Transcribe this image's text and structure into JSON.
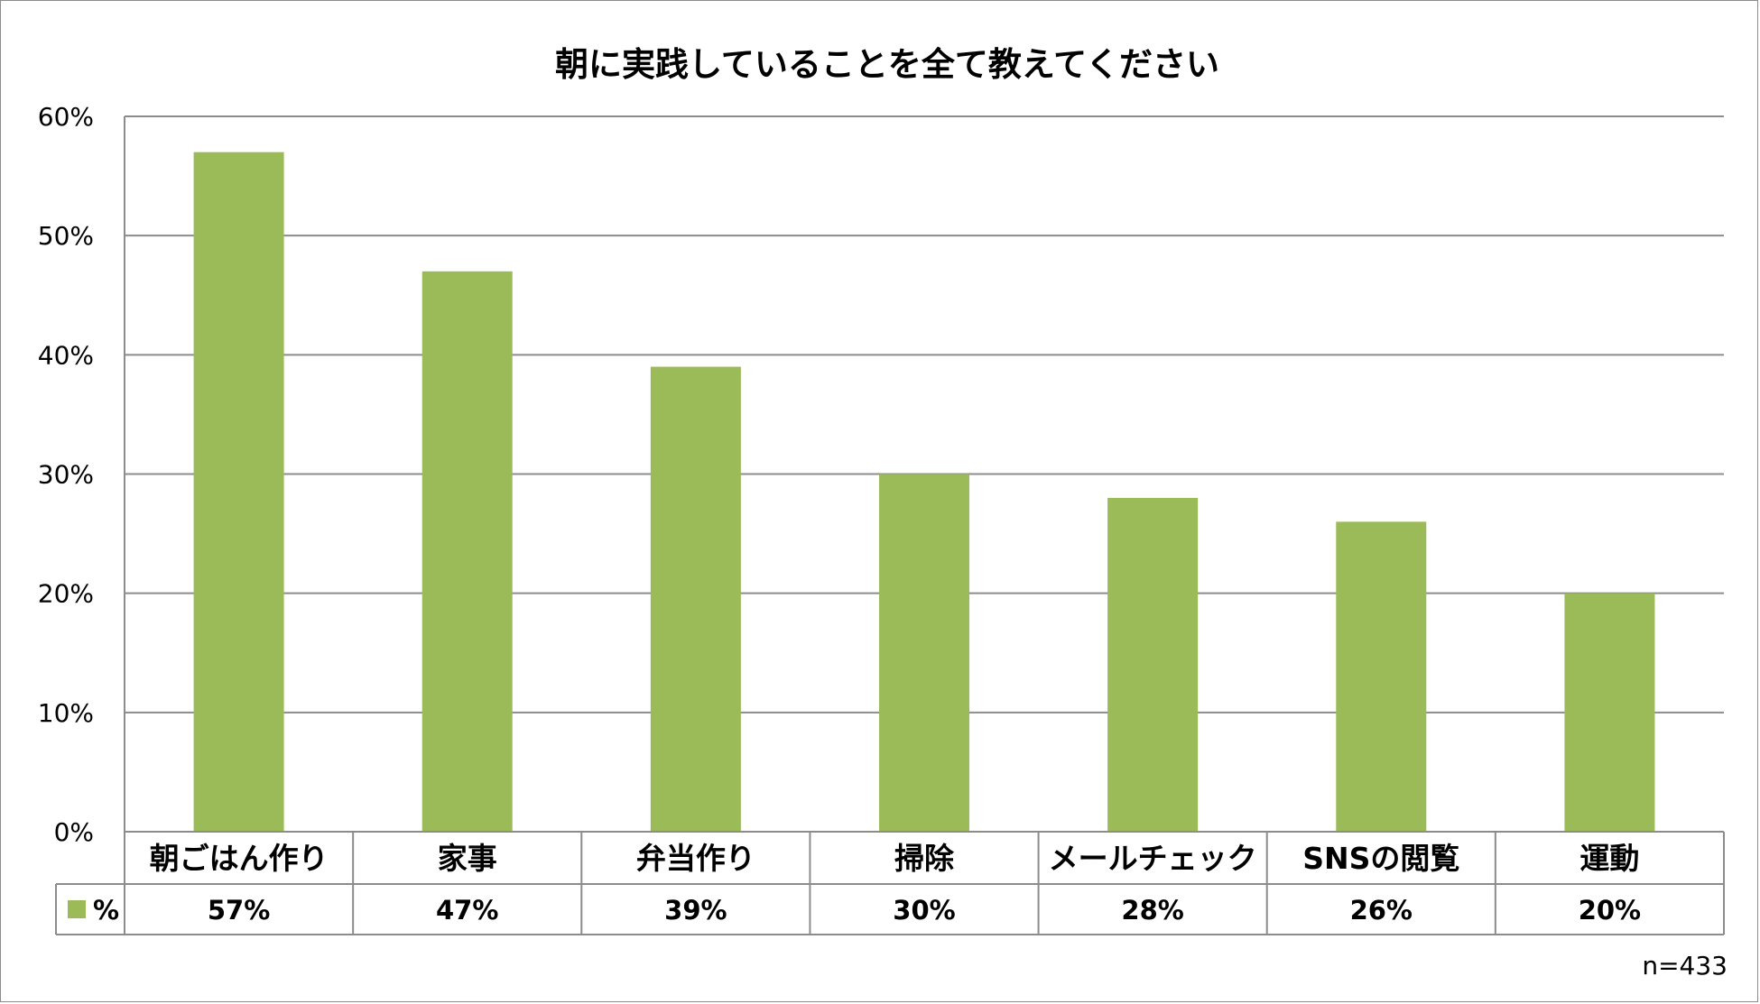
{
  "chart_data": {
    "type": "bar",
    "title": "朝に実践していることを全て教えてください",
    "categories": [
      "朝ごはん作り",
      "家事",
      "弁当作り",
      "掃除",
      "メールチェック",
      "SNSの閲覧",
      "運動"
    ],
    "series": [
      {
        "name": "%",
        "values": [
          57,
          47,
          39,
          30,
          28,
          26,
          20
        ],
        "labels": [
          "57%",
          "47%",
          "39%",
          "30%",
          "28%",
          "26%",
          "20%"
        ],
        "color": "#9bbb59"
      }
    ],
    "ylim": [
      0,
      60
    ],
    "yticks": [
      0,
      10,
      20,
      30,
      40,
      50,
      60
    ],
    "ytick_labels": [
      "0%",
      "10%",
      "20%",
      "30%",
      "40%",
      "50%",
      "60%"
    ],
    "grid": true,
    "data_table": true,
    "note": "n=433"
  }
}
